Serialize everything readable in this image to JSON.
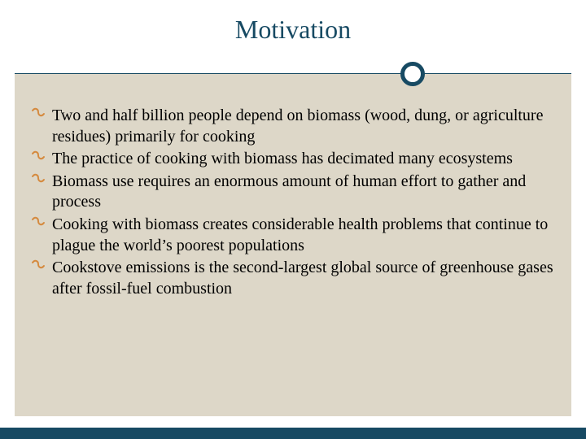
{
  "slide": {
    "title": "Motivation",
    "title_color": "#174a63",
    "title_fontsize": 32,
    "divider_color": "#174a63",
    "ring_border_width": 5,
    "body_background": "#ddd7c8",
    "footer_bar_color": "#174a63",
    "bullet_glyph": "་",
    "bullet_color": "#d58a3f",
    "body_fontsize": 20,
    "body_text_color": "#000000",
    "bullets": [
      "Two and half billion people depend on biomass (wood, dung, or agriculture residues) primarily for cooking",
      "The practice of cooking with biomass has decimated many ecosystems",
      "Biomass use requires an enormous amount of human effort to gather and process",
      "Cooking with biomass creates considerable health problems that continue to plague the world’s poorest populations",
      "Cookstove emissions is the second-largest global source of greenhouse gases after fossil-fuel combustion"
    ]
  }
}
